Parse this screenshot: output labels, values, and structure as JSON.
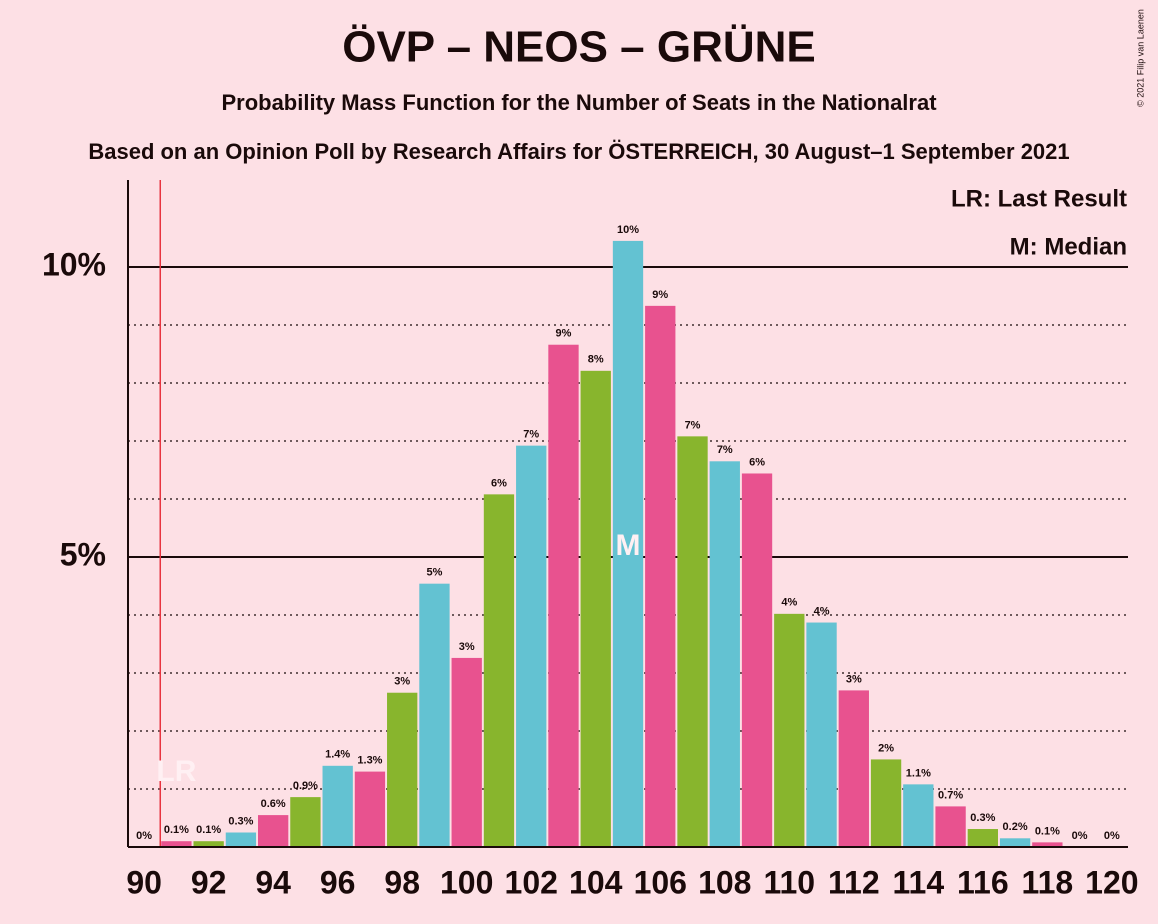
{
  "chart_data": {
    "type": "bar",
    "title": "ÖVP – NEOS – GRÜNE",
    "subtitle": "Probability Mass Function for the Number of Seats in the Nationalrat",
    "source": "Based on an Opinion Poll by Research Affairs for ÖSTERREICH, 30 August–1 September 2021",
    "copyright": "© 2021 Filip van Laenen",
    "legend": [
      "LR: Last Result",
      "M: Median"
    ],
    "x": [
      90,
      91,
      92,
      93,
      94,
      95,
      96,
      97,
      98,
      99,
      100,
      101,
      102,
      103,
      104,
      105,
      106,
      107,
      108,
      109,
      110,
      111,
      112,
      113,
      114,
      115,
      116,
      117,
      118,
      119,
      120
    ],
    "values": [
      0,
      0.1,
      0.1,
      0.25,
      0.55,
      0.86,
      1.4,
      1.3,
      2.66,
      4.54,
      3.26,
      6.08,
      6.92,
      8.66,
      8.21,
      10.45,
      9.33,
      7.08,
      6.65,
      6.44,
      4.02,
      3.87,
      2.7,
      1.51,
      1.08,
      0.7,
      0.31,
      0.15,
      0.08,
      0,
      0
    ],
    "value_labels": [
      "0%",
      "0.1%",
      "0.1%",
      "0.3%",
      "0.6%",
      "0.9%",
      "1.4%",
      "1.3%",
      "3%",
      "5%",
      "3%",
      "6%",
      "7%",
      "9%",
      "8%",
      "10%",
      "9%",
      "7%",
      "7%",
      "6%",
      "4%",
      "4%",
      "3%",
      "2%",
      "1.1%",
      "0.7%",
      "0.3%",
      "0.2%",
      "0.1%",
      "0%",
      "0%"
    ],
    "colors": [
      "#63c2d2",
      "#e8528f",
      "#88b52d",
      "#63c2d2",
      "#e8528f",
      "#88b52d",
      "#63c2d2",
      "#e8528f",
      "#88b52d",
      "#63c2d2",
      "#e8528f",
      "#88b52d",
      "#63c2d2",
      "#e8528f",
      "#88b52d",
      "#63c2d2",
      "#e8528f",
      "#88b52d",
      "#63c2d2",
      "#e8528f",
      "#88b52d",
      "#63c2d2",
      "#e8528f",
      "#88b52d",
      "#63c2d2",
      "#e8528f",
      "#88b52d",
      "#63c2d2",
      "#e8528f",
      "#88b52d",
      "#63c2d2"
    ],
    "xlim": [
      89.5,
      120.5
    ],
    "xticks": [
      90,
      92,
      94,
      96,
      98,
      100,
      102,
      104,
      106,
      108,
      110,
      112,
      114,
      116,
      118,
      120
    ],
    "ylim": [
      0,
      11.5
    ],
    "yticks": [
      {
        "value": 5,
        "label": "5%"
      },
      {
        "value": 10,
        "label": "10%"
      }
    ],
    "minor_yticks": [
      1,
      2,
      3,
      4,
      6,
      7,
      8,
      9
    ],
    "last_result": 91,
    "last_result_label": "LR",
    "median": 105,
    "median_label": "M"
  }
}
